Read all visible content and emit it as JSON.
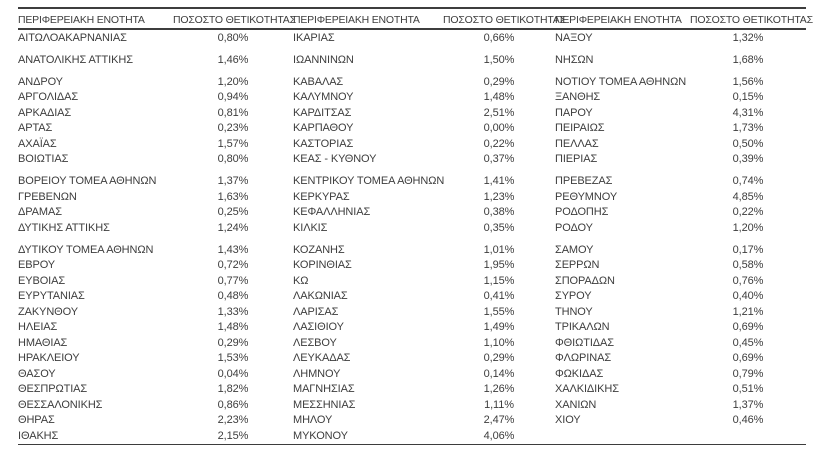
{
  "table": {
    "header": {
      "region_label": "ΠΕΡΙΦΕΡΕΙΑΚΗ ΕΝΟΤΗΤΑ",
      "positivity_label": "ΠΟΣΟΣΤΟ ΘΕΤΙΚΟΤΗΤΑΣ"
    },
    "colors": {
      "text": "#3d3d3d",
      "rule": "#3d3d3d",
      "background": "#ffffff"
    },
    "rows": [
      {
        "c1": "ΑΙΤΩΛΟΑΚΑΡΝΑΝΙΑΣ",
        "v1": "0,80%",
        "c2": "ΙΚΑΡΙΑΣ",
        "v2": "0,66%",
        "c3": "ΝΑΞΟΥ",
        "v3": "1,32%",
        "gap": false
      },
      {
        "c1": "ΑΝΑΤΟΛΙΚΗΣ ΑΤΤΙΚΗΣ",
        "v1": "1,46%",
        "c2": "ΙΩΑΝΝΙΝΩΝ",
        "v2": "1,50%",
        "c3": "ΝΗΣΩΝ",
        "v3": "1,68%",
        "gap": true
      },
      {
        "c1": "ΑΝΔΡΟΥ",
        "v1": "1,20%",
        "c2": "ΚΑΒΑΛΑΣ",
        "v2": "0,29%",
        "c3": "ΝΟΤΙΟΥ ΤΟΜΕΑ ΑΘΗΝΩΝ",
        "v3": "1,56%",
        "gap": true
      },
      {
        "c1": "ΑΡΓΟΛΙΔΑΣ",
        "v1": "0,94%",
        "c2": "ΚΑΛΥΜΝΟΥ",
        "v2": "1,48%",
        "c3": "ΞΑΝΘΗΣ",
        "v3": "0,15%",
        "gap": false
      },
      {
        "c1": "ΑΡΚΑΔΙΑΣ",
        "v1": "0,81%",
        "c2": "ΚΑΡΔΙΤΣΑΣ",
        "v2": "2,51%",
        "c3": "ΠΑΡΟΥ",
        "v3": "4,31%",
        "gap": false
      },
      {
        "c1": "ΑΡΤΑΣ",
        "v1": "0,23%",
        "c2": "ΚΑΡΠΑΘΟΥ",
        "v2": "0,00%",
        "c3": "ΠΕΙΡΑΙΩΣ",
        "v3": "1,73%",
        "gap": false
      },
      {
        "c1": "ΑΧΑΪΑΣ",
        "v1": "1,57%",
        "c2": "ΚΑΣΤΟΡΙΑΣ",
        "v2": "0,22%",
        "c3": "ΠΕΛΛΑΣ",
        "v3": "0,50%",
        "gap": false
      },
      {
        "c1": "ΒΟΙΩΤΙΑΣ",
        "v1": "0,80%",
        "c2": "ΚΕΑΣ - ΚΥΘΝΟΥ",
        "v2": "0,37%",
        "c3": "ΠΙΕΡΙΑΣ",
        "v3": "0,39%",
        "gap": false
      },
      {
        "c1": "ΒΟΡΕΙΟΥ ΤΟΜΕΑ ΑΘΗΝΩΝ",
        "v1": "1,37%",
        "c2": "ΚΕΝΤΡΙΚΟΥ ΤΟΜΕΑ ΑΘΗΝΩΝ",
        "v2": "1,41%",
        "c3": "ΠΡΕΒΕΖΑΣ",
        "v3": "0,74%",
        "gap": true
      },
      {
        "c1": "ΓΡΕΒΕΝΩΝ",
        "v1": "1,63%",
        "c2": "ΚΕΡΚΥΡΑΣ",
        "v2": "1,23%",
        "c3": "ΡΕΘΥΜΝΟΥ",
        "v3": "4,85%",
        "gap": false
      },
      {
        "c1": "ΔΡΑΜΑΣ",
        "v1": "0,25%",
        "c2": "ΚΕΦΑΛΛΗΝΙΑΣ",
        "v2": "0,38%",
        "c3": "ΡΟΔΟΠΗΣ",
        "v3": "0,22%",
        "gap": false
      },
      {
        "c1": "ΔΥΤΙΚΗΣ ΑΤΤΙΚΗΣ",
        "v1": "1,24%",
        "c2": "ΚΙΛΚΙΣ",
        "v2": "0,35%",
        "c3": "ΡΟΔΟΥ",
        "v3": "1,20%",
        "gap": false
      },
      {
        "c1": "ΔΥΤΙΚΟΥ ΤΟΜΕΑ ΑΘΗΝΩΝ",
        "v1": "1,43%",
        "c2": "ΚΟΖΑΝΗΣ",
        "v2": "1,01%",
        "c3": "ΣΑΜΟΥ",
        "v3": "0,17%",
        "gap": true
      },
      {
        "c1": "ΕΒΡΟΥ",
        "v1": "0,72%",
        "c2": "ΚΟΡΙΝΘΙΑΣ",
        "v2": "1,95%",
        "c3": "ΣΕΡΡΩΝ",
        "v3": "0,58%",
        "gap": false
      },
      {
        "c1": "ΕΥΒΟΙΑΣ",
        "v1": "0,77%",
        "c2": "ΚΩ",
        "v2": "1,15%",
        "c3": "ΣΠΟΡΑΔΩΝ",
        "v3": "0,76%",
        "gap": false
      },
      {
        "c1": "ΕΥΡΥΤΑΝΙΑΣ",
        "v1": "0,48%",
        "c2": "ΛΑΚΩΝΙΑΣ",
        "v2": "0,41%",
        "c3": "ΣΥΡΟΥ",
        "v3": "0,40%",
        "gap": false
      },
      {
        "c1": "ΖΑΚΥΝΘΟΥ",
        "v1": "1,33%",
        "c2": "ΛΑΡΙΣΑΣ",
        "v2": "1,55%",
        "c3": "ΤΗΝΟΥ",
        "v3": "1,21%",
        "gap": false
      },
      {
        "c1": "ΗΛΕΙΑΣ",
        "v1": "1,48%",
        "c2": "ΛΑΣΙΘΙΟΥ",
        "v2": "1,49%",
        "c3": "ΤΡΙΚΑΛΩΝ",
        "v3": "0,69%",
        "gap": false
      },
      {
        "c1": "ΗΜΑΘΙΑΣ",
        "v1": "0,29%",
        "c2": "ΛΕΣΒΟΥ",
        "v2": "1,10%",
        "c3": "ΦΘΙΩΤΙΔΑΣ",
        "v3": "0,45%",
        "gap": false
      },
      {
        "c1": "ΗΡΑΚΛΕΙΟΥ",
        "v1": "1,53%",
        "c2": "ΛΕΥΚΑΔΑΣ",
        "v2": "0,29%",
        "c3": "ΦΛΩΡΙΝΑΣ",
        "v3": "0,69%",
        "gap": false
      },
      {
        "c1": "ΘΑΣΟΥ",
        "v1": "0,04%",
        "c2": "ΛΗΜΝΟΥ",
        "v2": "0,14%",
        "c3": "ΦΩΚΙΔΑΣ",
        "v3": "0,79%",
        "gap": false
      },
      {
        "c1": "ΘΕΣΠΡΩΤΙΑΣ",
        "v1": "1,82%",
        "c2": "ΜΑΓΝΗΣΙΑΣ",
        "v2": "1,26%",
        "c3": "ΧΑΛΚΙΔΙΚΗΣ",
        "v3": "0,51%",
        "gap": false
      },
      {
        "c1": "ΘΕΣΣΑΛΟΝΙΚΗΣ",
        "v1": "0,86%",
        "c2": "ΜΕΣΣΗΝΙΑΣ",
        "v2": "1,11%",
        "c3": "ΧΑΝΙΩΝ",
        "v3": "1,37%",
        "gap": false
      },
      {
        "c1": "ΘΗΡΑΣ",
        "v1": "2,23%",
        "c2": "ΜΗΛΟΥ",
        "v2": "2,47%",
        "c3": "ΧΙΟΥ",
        "v3": "0,46%",
        "gap": false
      },
      {
        "c1": "ΙΘΑΚΗΣ",
        "v1": "2,15%",
        "c2": "ΜΥΚΟΝΟΥ",
        "v2": "4,06%",
        "c3": "",
        "v3": "",
        "gap": false
      }
    ]
  }
}
